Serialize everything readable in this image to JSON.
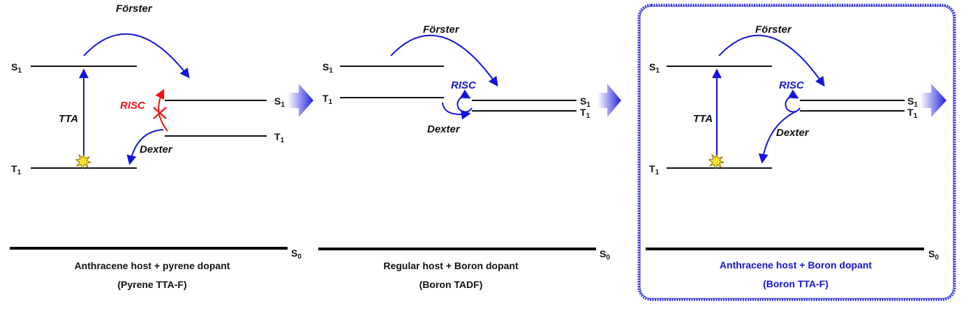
{
  "panels": [
    {
      "levels": {
        "host_s1": {
          "base": "S",
          "sub": "1"
        },
        "host_t1": {
          "base": "T",
          "sub": "1"
        },
        "dopant_s1": {
          "base": "S",
          "sub": "1"
        },
        "dopant_t1": {
          "base": "T",
          "sub": "1"
        },
        "ground": {
          "base": "S",
          "sub": "0"
        }
      },
      "processes": {
        "forster": "Förster",
        "tta": "TTA",
        "risc": "RISC",
        "dexter": "Dexter"
      },
      "caption": {
        "line1": "Anthracene host + pyrene dopant",
        "line2": "(Pyrene TTA-F)"
      }
    },
    {
      "levels": {
        "host_s1": {
          "base": "S",
          "sub": "1"
        },
        "host_t1": {
          "base": "T",
          "sub": "1"
        },
        "dopant_s1": {
          "base": "S",
          "sub": "1"
        },
        "dopant_t1": {
          "base": "T",
          "sub": "1"
        },
        "ground": {
          "base": "S",
          "sub": "0"
        }
      },
      "processes": {
        "forster": "Förster",
        "risc": "RISC",
        "dexter": "Dexter"
      },
      "caption": {
        "line1": "Regular host + Boron dopant",
        "line2": "(Boron TADF)"
      }
    },
    {
      "levels": {
        "host_s1": {
          "base": "S",
          "sub": "1"
        },
        "host_t1": {
          "base": "T",
          "sub": "1"
        },
        "dopant_s1": {
          "base": "S",
          "sub": "1"
        },
        "dopant_t1": {
          "base": "T",
          "sub": "1"
        },
        "ground": {
          "base": "S",
          "sub": "0"
        }
      },
      "processes": {
        "forster": "Förster",
        "tta": "TTA",
        "risc": "RISC",
        "dexter": "Dexter"
      },
      "caption": {
        "line1": "Anthracene host + Boron dopant",
        "line2": "(Boron TTA-F)"
      }
    }
  ],
  "colors": {
    "process": "#1414d8",
    "blocked": "#ee1111",
    "level": "#111111",
    "highlight_frame": "#2a2ae0",
    "spark": "#ffe033"
  }
}
